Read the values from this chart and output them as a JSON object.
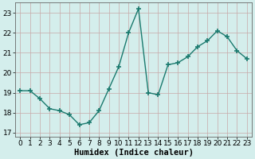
{
  "x": [
    0,
    1,
    2,
    3,
    4,
    5,
    6,
    7,
    8,
    9,
    10,
    11,
    12,
    13,
    14,
    15,
    16,
    17,
    18,
    19,
    20,
    21,
    22,
    23
  ],
  "y": [
    19.1,
    19.1,
    18.7,
    18.2,
    18.1,
    17.9,
    17.4,
    17.5,
    18.1,
    19.2,
    20.3,
    22.0,
    23.2,
    19.0,
    18.9,
    20.4,
    20.5,
    20.8,
    21.3,
    21.6,
    22.1,
    21.8,
    21.1,
    20.7
  ],
  "xlabel": "Humidex (Indice chaleur)",
  "ylim": [
    16.8,
    23.5
  ],
  "xlim": [
    -0.5,
    23.5
  ],
  "yticks": [
    17,
    18,
    19,
    20,
    21,
    22,
    23
  ],
  "xticks": [
    0,
    1,
    2,
    3,
    4,
    5,
    6,
    7,
    8,
    9,
    10,
    11,
    12,
    13,
    14,
    15,
    16,
    17,
    18,
    19,
    20,
    21,
    22,
    23
  ],
  "line_color": "#1a7a6e",
  "marker": "+",
  "marker_size": 4,
  "linewidth": 1.0,
  "bg_color": "#d4eeec",
  "grid_color": "#c8a8a8",
  "tick_fontsize": 6.5,
  "xlabel_fontsize": 7.5,
  "title": ""
}
